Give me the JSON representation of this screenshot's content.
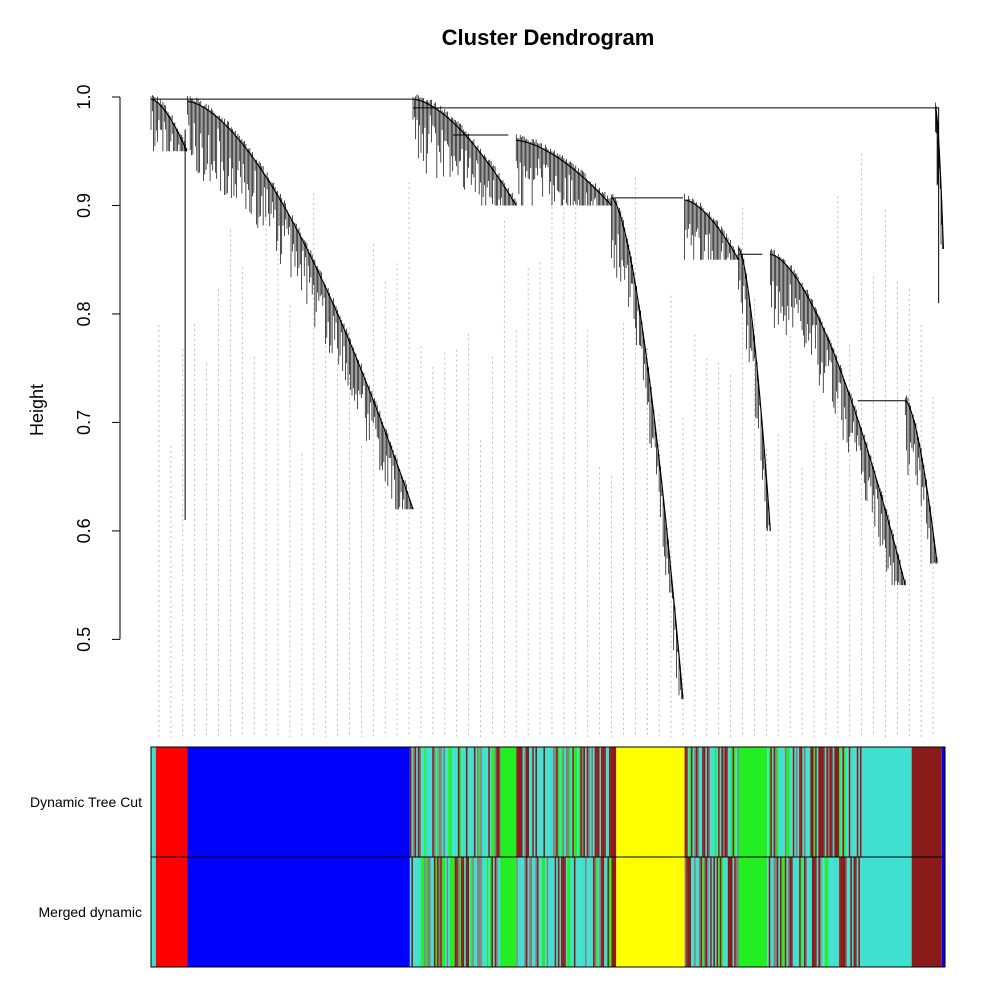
{
  "chart_data": {
    "type": "dendrogram",
    "title": "Cluster Dendrogram",
    "ylabel": "Height",
    "xlabel": "",
    "ylim": [
      0.41,
      1.0
    ],
    "yticks": [
      "0.5",
      "0.6",
      "0.7",
      "0.8",
      "0.9",
      "1.0"
    ],
    "grid": false,
    "leaf_span": [
      0,
      100
    ],
    "major_branches": [
      {
        "name": "left",
        "join_height": 0.998,
        "leaf_range": [
          0,
          33
        ],
        "min_height": 0.61
      },
      {
        "name": "middle",
        "join_height": 0.99,
        "leaf_range": [
          33,
          67
        ],
        "min_height": 0.445
      },
      {
        "name": "right",
        "join_height": 0.99,
        "leaf_range": [
          67,
          100
        ],
        "min_height": 0.55
      }
    ],
    "color_rows": [
      {
        "label": "Dynamic Tree Cut",
        "segments": [
          {
            "start": 0,
            "end": 0.6,
            "color": "#40E0D0"
          },
          {
            "start": 0.6,
            "end": 4.6,
            "color": "#FF0000"
          },
          {
            "start": 4.6,
            "end": 32.6,
            "color": "#0000FF"
          },
          {
            "start": 32.6,
            "end": 44.0,
            "color": "mix"
          },
          {
            "start": 44.0,
            "end": 46.0,
            "color": "#22EE22"
          },
          {
            "start": 46.0,
            "end": 58.0,
            "color": "mix"
          },
          {
            "start": 58.0,
            "end": 58.6,
            "color": "#8B1A1A"
          },
          {
            "start": 58.6,
            "end": 67.2,
            "color": "#FFFF00"
          },
          {
            "start": 67.2,
            "end": 74.0,
            "color": "mix"
          },
          {
            "start": 74.0,
            "end": 77.6,
            "color": "#22EE22"
          },
          {
            "start": 77.6,
            "end": 89.6,
            "color": "mix"
          },
          {
            "start": 89.6,
            "end": 95.8,
            "color": "#40E0D0"
          },
          {
            "start": 95.8,
            "end": 99.6,
            "color": "#8B1A1A"
          },
          {
            "start": 99.6,
            "end": 100,
            "color": "#0000FF"
          }
        ]
      },
      {
        "label": "Merged dynamic",
        "segments": [
          {
            "start": 0,
            "end": 0.6,
            "color": "#40E0D0"
          },
          {
            "start": 0.6,
            "end": 4.6,
            "color": "#FF0000"
          },
          {
            "start": 4.6,
            "end": 32.6,
            "color": "#0000FF"
          },
          {
            "start": 32.6,
            "end": 44.0,
            "color": "mix"
          },
          {
            "start": 44.0,
            "end": 46.0,
            "color": "#22EE22"
          },
          {
            "start": 46.0,
            "end": 58.0,
            "color": "mix"
          },
          {
            "start": 58.0,
            "end": 58.6,
            "color": "#8B1A1A"
          },
          {
            "start": 58.6,
            "end": 67.2,
            "color": "#FFFF00"
          },
          {
            "start": 67.2,
            "end": 74.0,
            "color": "mix"
          },
          {
            "start": 74.0,
            "end": 77.6,
            "color": "#22EE22"
          },
          {
            "start": 77.6,
            "end": 89.6,
            "color": "mix"
          },
          {
            "start": 89.6,
            "end": 95.8,
            "color": "#40E0D0"
          },
          {
            "start": 95.8,
            "end": 99.6,
            "color": "#8B1A1A"
          },
          {
            "start": 99.6,
            "end": 100,
            "color": "#0000FF"
          }
        ]
      }
    ],
    "mix_colors": [
      "#40E0D0",
      "#8B1A1A",
      "#22EE22",
      "#7F7F7F",
      "#40E0D0",
      "#40E0D0",
      "#8B1A1A"
    ]
  }
}
